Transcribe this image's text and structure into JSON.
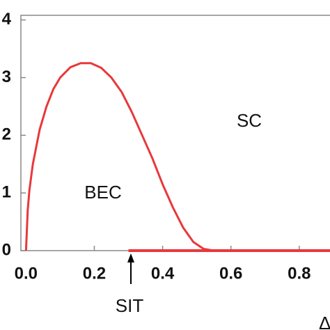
{
  "chart_data": {
    "type": "line",
    "x_label": "Δ",
    "annotations": [
      "BEC",
      "SC",
      "SIT"
    ],
    "series": [
      {
        "color": "#e8383b",
        "x": [
          0,
          0.005,
          0.01,
          0.02,
          0.04,
          0.06,
          0.08,
          0.1,
          0.13,
          0.16,
          0.19,
          0.22,
          0.25,
          0.28,
          0.31,
          0.34,
          0.37,
          0.4,
          0.43,
          0.46,
          0.49,
          0.52,
          0.55
        ],
        "values": [
          0,
          0.7,
          1.05,
          1.5,
          2.1,
          2.5,
          2.8,
          3.0,
          3.18,
          3.25,
          3.25,
          3.17,
          3.0,
          2.75,
          2.4,
          2.0,
          1.6,
          1.15,
          0.75,
          0.4,
          0.15,
          0.03,
          0
        ]
      },
      {
        "color": "#e8383b",
        "x": [
          0.3,
          0.89
        ],
        "values": [
          0,
          0
        ]
      }
    ],
    "xlim": [
      -0.015,
      0.89
    ],
    "ylim": [
      0,
      4.08
    ],
    "xticks": [
      {
        "value": 0,
        "label": "0.0"
      },
      0.2,
      0.4,
      0.6,
      0.8
    ],
    "yticks": [
      0,
      1,
      2,
      3,
      4
    ]
  }
}
